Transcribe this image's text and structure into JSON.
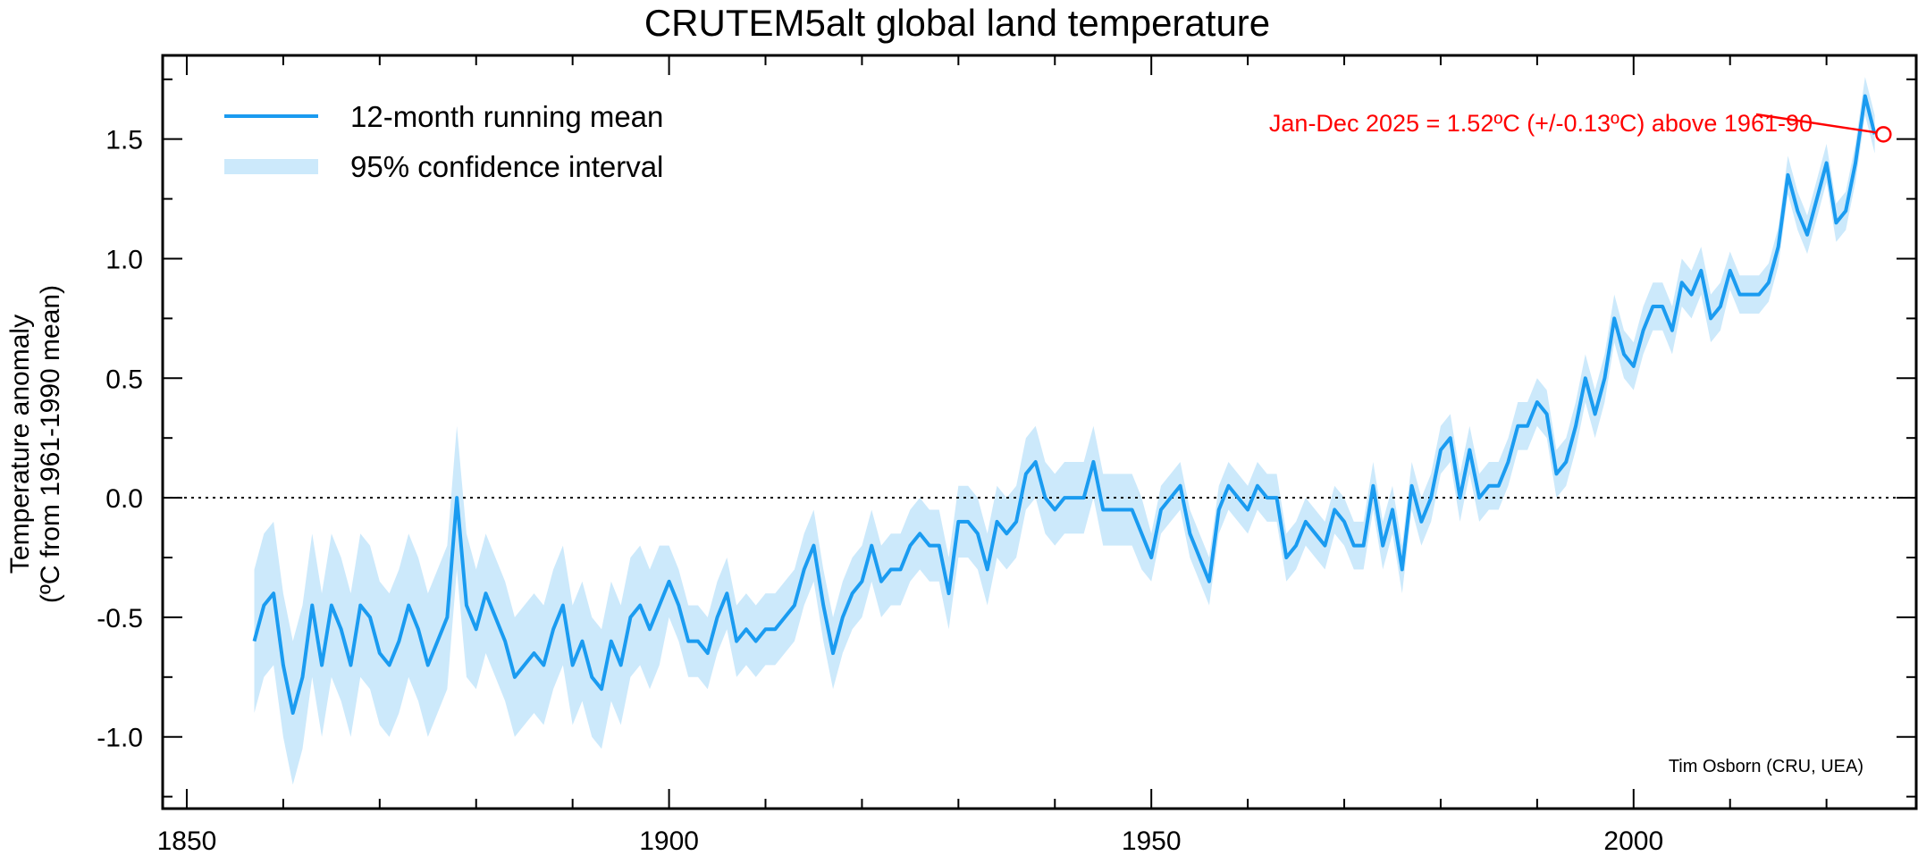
{
  "chart_data": {
    "type": "line",
    "title": "CRUTEM5alt global land temperature",
    "xlabel": "",
    "ylabel": [
      "Temperature anomaly",
      "(ºC from 1961-1990 mean)"
    ],
    "xlim": [
      1847.5,
      2029.3
    ],
    "ylim": [
      -1.3,
      1.85
    ],
    "xticks": [
      1850,
      1900,
      1950,
      2000
    ],
    "yticks": [
      -1.0,
      -0.5,
      0.0,
      0.5,
      1.0,
      1.5
    ],
    "ytick_labels": [
      "-1.0",
      "-0.5",
      "0.0",
      "0.5",
      "1.0",
      "1.5"
    ],
    "zero_line": "dotted",
    "legend": {
      "placement": "top-left",
      "entries": [
        "12-month running mean",
        "95% confidence interval"
      ]
    },
    "colors": {
      "line": "#1a9bf0",
      "band": "#cce9fb",
      "annotation": "#ff0000"
    },
    "annotation": {
      "text": "Jan-Dec 2025 = 1.52ºC (+/-0.13ºC) above 1961-90",
      "x": 2025.9,
      "y": 1.52
    },
    "credit": "Tim Osborn (CRU, UEA)",
    "series": [
      {
        "name": "12-month running mean",
        "x": [
          1857,
          1858,
          1859,
          1860,
          1861,
          1862,
          1863,
          1864,
          1865,
          1866,
          1867,
          1868,
          1869,
          1870,
          1871,
          1872,
          1873,
          1874,
          1875,
          1876,
          1877,
          1878,
          1879,
          1880,
          1881,
          1882,
          1883,
          1884,
          1885,
          1886,
          1887,
          1888,
          1889,
          1890,
          1891,
          1892,
          1893,
          1894,
          1895,
          1896,
          1897,
          1898,
          1899,
          1900,
          1901,
          1902,
          1903,
          1904,
          1905,
          1906,
          1907,
          1908,
          1909,
          1910,
          1911,
          1912,
          1913,
          1914,
          1915,
          1916,
          1917,
          1918,
          1919,
          1920,
          1921,
          1922,
          1923,
          1924,
          1925,
          1926,
          1927,
          1928,
          1929,
          1930,
          1931,
          1932,
          1933,
          1934,
          1935,
          1936,
          1937,
          1938,
          1939,
          1940,
          1941,
          1942,
          1943,
          1944,
          1945,
          1946,
          1947,
          1948,
          1949,
          1950,
          1951,
          1952,
          1953,
          1954,
          1955,
          1956,
          1957,
          1958,
          1959,
          1960,
          1961,
          1962,
          1963,
          1964,
          1965,
          1966,
          1967,
          1968,
          1969,
          1970,
          1971,
          1972,
          1973,
          1974,
          1975,
          1976,
          1977,
          1978,
          1979,
          1980,
          1981,
          1982,
          1983,
          1984,
          1985,
          1986,
          1987,
          1988,
          1989,
          1990,
          1991,
          1992,
          1993,
          1994,
          1995,
          1996,
          1997,
          1998,
          1999,
          2000,
          2001,
          2002,
          2003,
          2004,
          2005,
          2006,
          2007,
          2008,
          2009,
          2010,
          2011,
          2012,
          2013,
          2014,
          2015,
          2016,
          2017,
          2018,
          2019,
          2020,
          2021,
          2022,
          2023,
          2024,
          2025
        ],
        "y": [
          -0.6,
          -0.45,
          -0.4,
          -0.7,
          -0.9,
          -0.75,
          -0.45,
          -0.7,
          -0.45,
          -0.55,
          -0.7,
          -0.45,
          -0.5,
          -0.65,
          -0.7,
          -0.6,
          -0.45,
          -0.55,
          -0.7,
          -0.6,
          -0.5,
          0.0,
          -0.45,
          -0.55,
          -0.4,
          -0.5,
          -0.6,
          -0.75,
          -0.7,
          -0.65,
          -0.7,
          -0.55,
          -0.45,
          -0.7,
          -0.6,
          -0.75,
          -0.8,
          -0.6,
          -0.7,
          -0.5,
          -0.45,
          -0.55,
          -0.45,
          -0.35,
          -0.45,
          -0.6,
          -0.6,
          -0.65,
          -0.5,
          -0.4,
          -0.6,
          -0.55,
          -0.6,
          -0.55,
          -0.55,
          -0.5,
          -0.45,
          -0.3,
          -0.2,
          -0.45,
          -0.65,
          -0.5,
          -0.4,
          -0.35,
          -0.2,
          -0.35,
          -0.3,
          -0.3,
          -0.2,
          -0.15,
          -0.2,
          -0.2,
          -0.4,
          -0.1,
          -0.1,
          -0.15,
          -0.3,
          -0.1,
          -0.15,
          -0.1,
          0.1,
          0.15,
          0.0,
          -0.05,
          0.0,
          0.0,
          0.0,
          0.15,
          -0.05,
          -0.05,
          -0.05,
          -0.05,
          -0.15,
          -0.25,
          -0.05,
          0.0,
          0.05,
          -0.15,
          -0.25,
          -0.35,
          -0.05,
          0.05,
          0.0,
          -0.05,
          0.05,
          0.0,
          0.0,
          -0.25,
          -0.2,
          -0.1,
          -0.15,
          -0.2,
          -0.05,
          -0.1,
          -0.2,
          -0.2,
          0.05,
          -0.2,
          -0.05,
          -0.3,
          0.05,
          -0.1,
          0.0,
          0.2,
          0.25,
          0.0,
          0.2,
          0.0,
          0.05,
          0.05,
          0.15,
          0.3,
          0.3,
          0.4,
          0.35,
          0.1,
          0.15,
          0.3,
          0.5,
          0.35,
          0.5,
          0.75,
          0.6,
          0.55,
          0.7,
          0.8,
          0.8,
          0.7,
          0.9,
          0.85,
          0.95,
          0.75,
          0.8,
          0.95,
          0.85,
          0.85,
          0.85,
          0.9,
          1.05,
          1.35,
          1.2,
          1.1,
          1.25,
          1.4,
          1.15,
          1.2,
          1.4,
          1.68,
          1.52
        ]
      }
    ],
    "ci_halfwidth": {
      "before_1880": 0.3,
      "1880_1900": 0.25,
      "1900_1950": 0.15,
      "1950_2010": 0.1,
      "after_2010": 0.08
    }
  }
}
